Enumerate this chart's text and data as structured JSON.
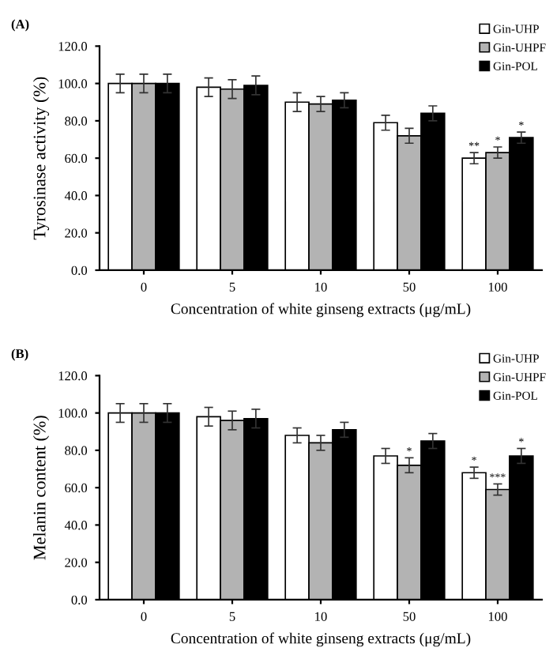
{
  "chart_data": [
    {
      "type": "bar",
      "title": "(A)",
      "xlabel": "Concentration of white ginseng extracts (μg/mL)",
      "ylabel": "Tyrosinase activity (%)",
      "categories": [
        "0",
        "5",
        "10",
        "50",
        "100"
      ],
      "series": [
        {
          "name": "Gin-UHP",
          "color": "#ffffff",
          "values": [
            100,
            98,
            90,
            79,
            60
          ],
          "errors": [
            5,
            5,
            5,
            4,
            3
          ],
          "value_labels": [
            null,
            null,
            null,
            null,
            "**"
          ]
        },
        {
          "name": "Gin-UHPF",
          "color": "#b3b3b3",
          "values": [
            100,
            97,
            89,
            72,
            63
          ],
          "errors": [
            5,
            5,
            4,
            4,
            3
          ],
          "value_labels": [
            null,
            null,
            null,
            null,
            "*"
          ]
        },
        {
          "name": "Gin-POL",
          "color": "#000000",
          "values": [
            100,
            99,
            91,
            84,
            71
          ],
          "errors": [
            5,
            5,
            4,
            4,
            3
          ],
          "value_labels": [
            null,
            null,
            null,
            null,
            "*"
          ]
        }
      ],
      "ylim": [
        0,
        120
      ],
      "yticks": [
        {
          "value": 0,
          "label": "0.0"
        },
        {
          "value": 20,
          "label": "20.0"
        },
        {
          "value": 40,
          "label": "40.0"
        },
        {
          "value": 60,
          "label": "60.0"
        },
        {
          "value": 80,
          "label": "80.0"
        },
        {
          "value": 100,
          "label": "100.0"
        },
        {
          "value": 120,
          "label": "120.0"
        }
      ],
      "grid": false,
      "legend": "top right"
    },
    {
      "type": "bar",
      "title": "(B)",
      "xlabel": "Concentration of white ginseng extracts (μg/mL)",
      "ylabel": "Melanin content (%)",
      "categories": [
        "0",
        "5",
        "10",
        "50",
        "100"
      ],
      "series": [
        {
          "name": "Gin-UHP",
          "color": "#ffffff",
          "values": [
            100,
            98,
            88,
            77,
            68
          ],
          "errors": [
            5,
            5,
            4,
            4,
            3
          ],
          "value_labels": [
            null,
            null,
            null,
            null,
            "*"
          ]
        },
        {
          "name": "Gin-UHPF",
          "color": "#b3b3b3",
          "values": [
            100,
            96,
            84,
            72,
            59
          ],
          "errors": [
            5,
            5,
            4,
            4,
            3
          ],
          "value_labels": [
            null,
            null,
            null,
            "*",
            "***"
          ]
        },
        {
          "name": "Gin-POL",
          "color": "#000000",
          "values": [
            100,
            97,
            91,
            85,
            77
          ],
          "errors": [
            5,
            5,
            4,
            4,
            4
          ],
          "value_labels": [
            null,
            null,
            null,
            null,
            "*"
          ]
        }
      ],
      "ylim": [
        0,
        120
      ],
      "yticks": [
        {
          "value": 0,
          "label": "0.0"
        },
        {
          "value": 20,
          "label": "20.0"
        },
        {
          "value": 40,
          "label": "40.0"
        },
        {
          "value": 60,
          "label": "60.0"
        },
        {
          "value": 80,
          "label": "80.0"
        },
        {
          "value": 100,
          "label": "100.0"
        },
        {
          "value": 120,
          "label": "120.0"
        }
      ],
      "grid": false,
      "legend": "top right"
    }
  ]
}
